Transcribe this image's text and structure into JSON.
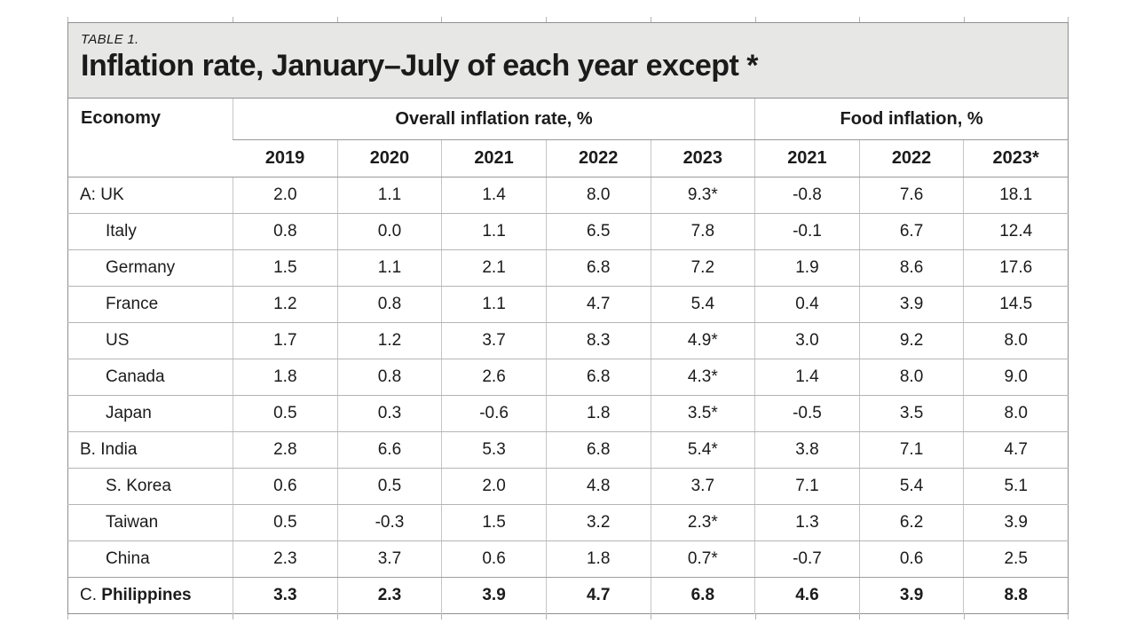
{
  "colors": {
    "page_bg": "#ffffff",
    "title_bg": "#e7e7e6",
    "text": "#1b1b1b",
    "border_outer": "#8f8f8f",
    "border_inner_horizontal": "#b5b5b5",
    "border_inner_vertical": "#c6c6c6",
    "border_header": "#9a9a9a"
  },
  "chart_data": {
    "type": "table",
    "label": "TABLE 1.",
    "title": "Inflation rate, January–July of each year except *",
    "header": {
      "economy_label": "Economy",
      "groups": [
        {
          "label": "Overall inflation rate, %",
          "years": [
            "2019",
            "2020",
            "2021",
            "2022",
            "2023"
          ]
        },
        {
          "label": "Food inflation, %",
          "years": [
            "2021",
            "2022",
            "2023*"
          ]
        }
      ]
    },
    "rows": [
      {
        "prefix": "A: ",
        "name": "UK",
        "indent": false,
        "bold": false,
        "values": [
          "2.0",
          "1.1",
          "1.4",
          "8.0",
          "9.3*",
          "-0.8",
          "7.6",
          "18.1"
        ]
      },
      {
        "prefix": "",
        "name": "Italy",
        "indent": true,
        "bold": false,
        "values": [
          "0.8",
          "0.0",
          "1.1",
          "6.5",
          "7.8",
          "-0.1",
          "6.7",
          "12.4"
        ]
      },
      {
        "prefix": "",
        "name": "Germany",
        "indent": true,
        "bold": false,
        "values": [
          "1.5",
          "1.1",
          "2.1",
          "6.8",
          "7.2",
          "1.9",
          "8.6",
          "17.6"
        ]
      },
      {
        "prefix": "",
        "name": "France",
        "indent": true,
        "bold": false,
        "values": [
          "1.2",
          "0.8",
          "1.1",
          "4.7",
          "5.4",
          "0.4",
          "3.9",
          "14.5"
        ]
      },
      {
        "prefix": "",
        "name": "US",
        "indent": true,
        "bold": false,
        "values": [
          "1.7",
          "1.2",
          "3.7",
          "8.3",
          "4.9*",
          "3.0",
          "9.2",
          "8.0"
        ]
      },
      {
        "prefix": "",
        "name": "Canada",
        "indent": true,
        "bold": false,
        "values": [
          "1.8",
          "0.8",
          "2.6",
          "6.8",
          "4.3*",
          "1.4",
          "8.0",
          "9.0"
        ]
      },
      {
        "prefix": "",
        "name": "Japan",
        "indent": true,
        "bold": false,
        "values": [
          "0.5",
          "0.3",
          "-0.6",
          "1.8",
          "3.5*",
          "-0.5",
          "3.5",
          "8.0"
        ]
      },
      {
        "prefix": "B. ",
        "name": "India",
        "indent": false,
        "bold": false,
        "values": [
          "2.8",
          "6.6",
          "5.3",
          "6.8",
          "5.4*",
          "3.8",
          "7.1",
          "4.7"
        ]
      },
      {
        "prefix": "",
        "name": "S. Korea",
        "indent": true,
        "bold": false,
        "values": [
          "0.6",
          "0.5",
          "2.0",
          "4.8",
          "3.7",
          "7.1",
          "5.4",
          "5.1"
        ]
      },
      {
        "prefix": "",
        "name": "Taiwan",
        "indent": true,
        "bold": false,
        "values": [
          "0.5",
          "-0.3",
          "1.5",
          "3.2",
          "2.3*",
          "1.3",
          "6.2",
          "3.9"
        ]
      },
      {
        "prefix": "",
        "name": "China",
        "indent": true,
        "bold": false,
        "values": [
          "2.3",
          "3.7",
          "0.6",
          "1.8",
          "0.7*",
          "-0.7",
          "0.6",
          "2.5"
        ]
      },
      {
        "prefix": "C. ",
        "name": "Philippines",
        "indent": false,
        "bold": true,
        "values": [
          "3.3",
          "2.3",
          "3.9",
          "4.7",
          "6.8",
          "4.6",
          "3.9",
          "8.8"
        ]
      }
    ]
  }
}
